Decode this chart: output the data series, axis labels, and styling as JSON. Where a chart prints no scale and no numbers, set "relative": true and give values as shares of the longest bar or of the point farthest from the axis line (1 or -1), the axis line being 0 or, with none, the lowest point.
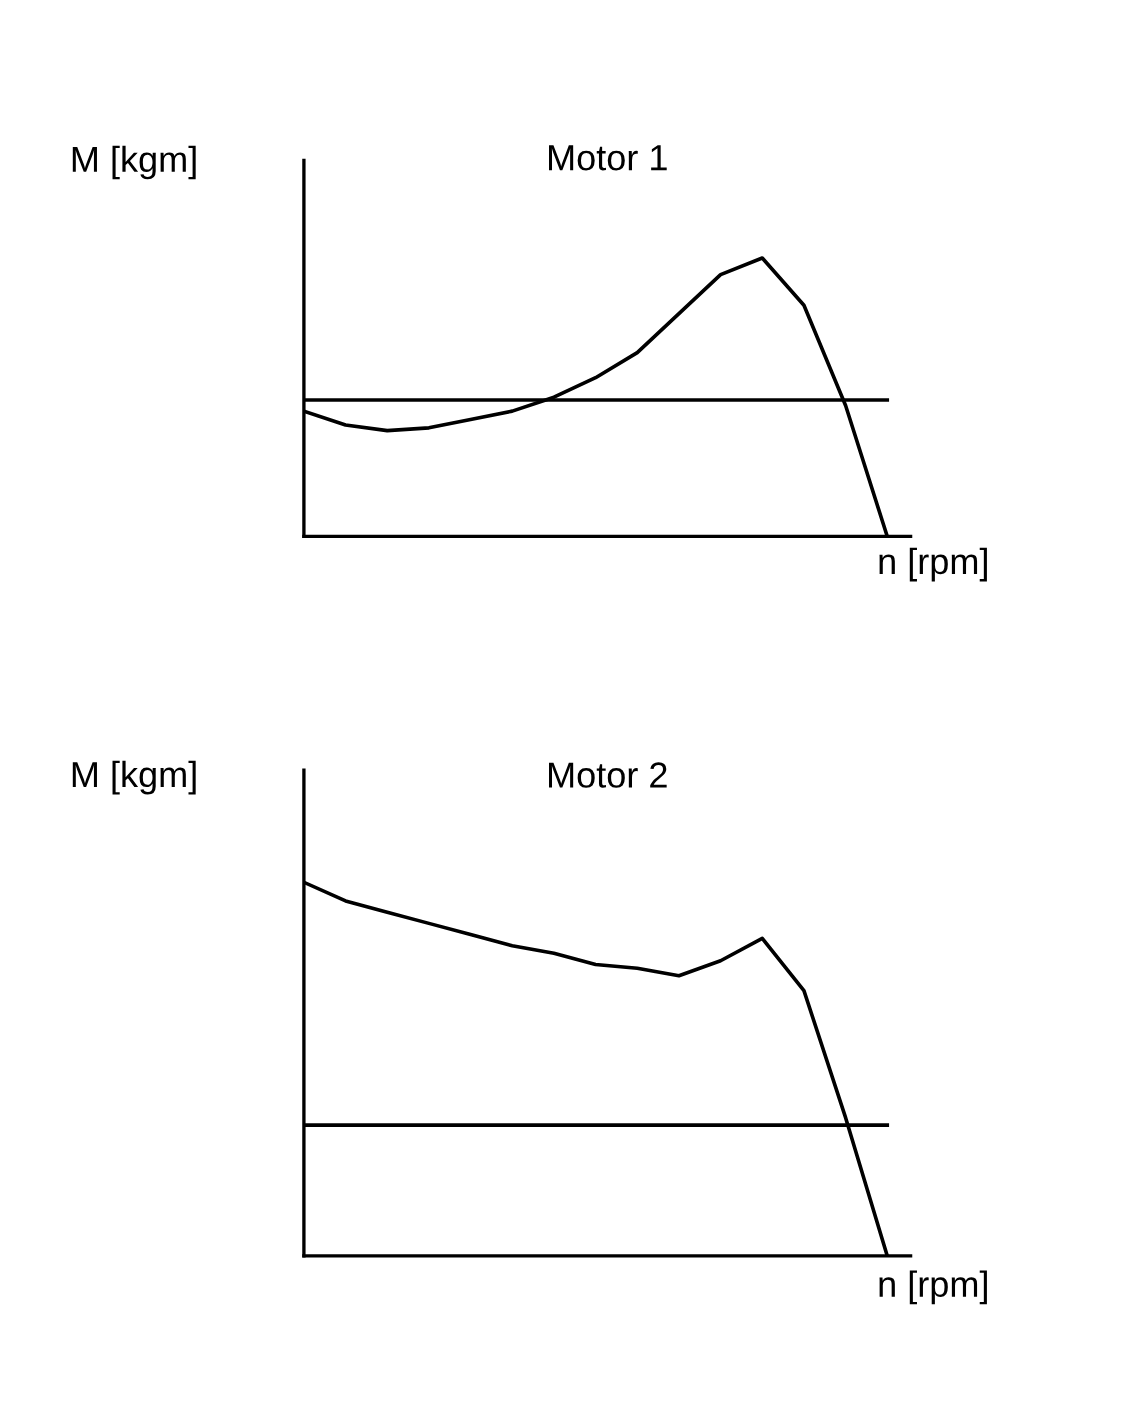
{
  "chart_data": [
    {
      "type": "line",
      "title": "Motor 1",
      "xlabel": "n [rpm]",
      "ylabel": "M [kgm]",
      "relative": true,
      "categories": [
        null,
        null,
        null,
        null,
        null,
        null,
        null,
        null,
        null,
        null,
        null,
        null,
        null,
        null,
        null
      ],
      "series": [
        {
          "color": "#000000",
          "values": [
            0.45,
            0.4,
            0.38,
            0.39,
            0.42,
            0.45,
            0.5,
            0.57,
            0.66,
            0.8,
            0.94,
            1.0,
            0.83,
            0.47,
            0
          ]
        },
        {
          "color": "#000000",
          "values": [
            0.49,
            0.49,
            0.49,
            0.49,
            0.49,
            0.49,
            0.49,
            0.49,
            0.49,
            0.49,
            0.49,
            0.49,
            0.49,
            0.49,
            0.49
          ]
        }
      ]
    },
    {
      "type": "line",
      "title": "Motor 2",
      "xlabel": "n [rpm]",
      "ylabel": "M [kgm]",
      "relative": true,
      "categories": [
        null,
        null,
        null,
        null,
        null,
        null,
        null,
        null,
        null,
        null,
        null,
        null,
        null,
        null,
        null
      ],
      "series": [
        {
          "color": "#000000",
          "values": [
            1.0,
            0.95,
            0.92,
            0.89,
            0.86,
            0.83,
            0.81,
            0.78,
            0.77,
            0.75,
            0.79,
            0.85,
            0.71,
            0.37,
            0
          ]
        },
        {
          "color": "#000000",
          "values": [
            0.35,
            0.35,
            0.35,
            0.35,
            0.35,
            0.35,
            0.35,
            0.35,
            0.35,
            0.35,
            0.35,
            0.35,
            0.35,
            0.35,
            0.35
          ]
        }
      ]
    }
  ]
}
